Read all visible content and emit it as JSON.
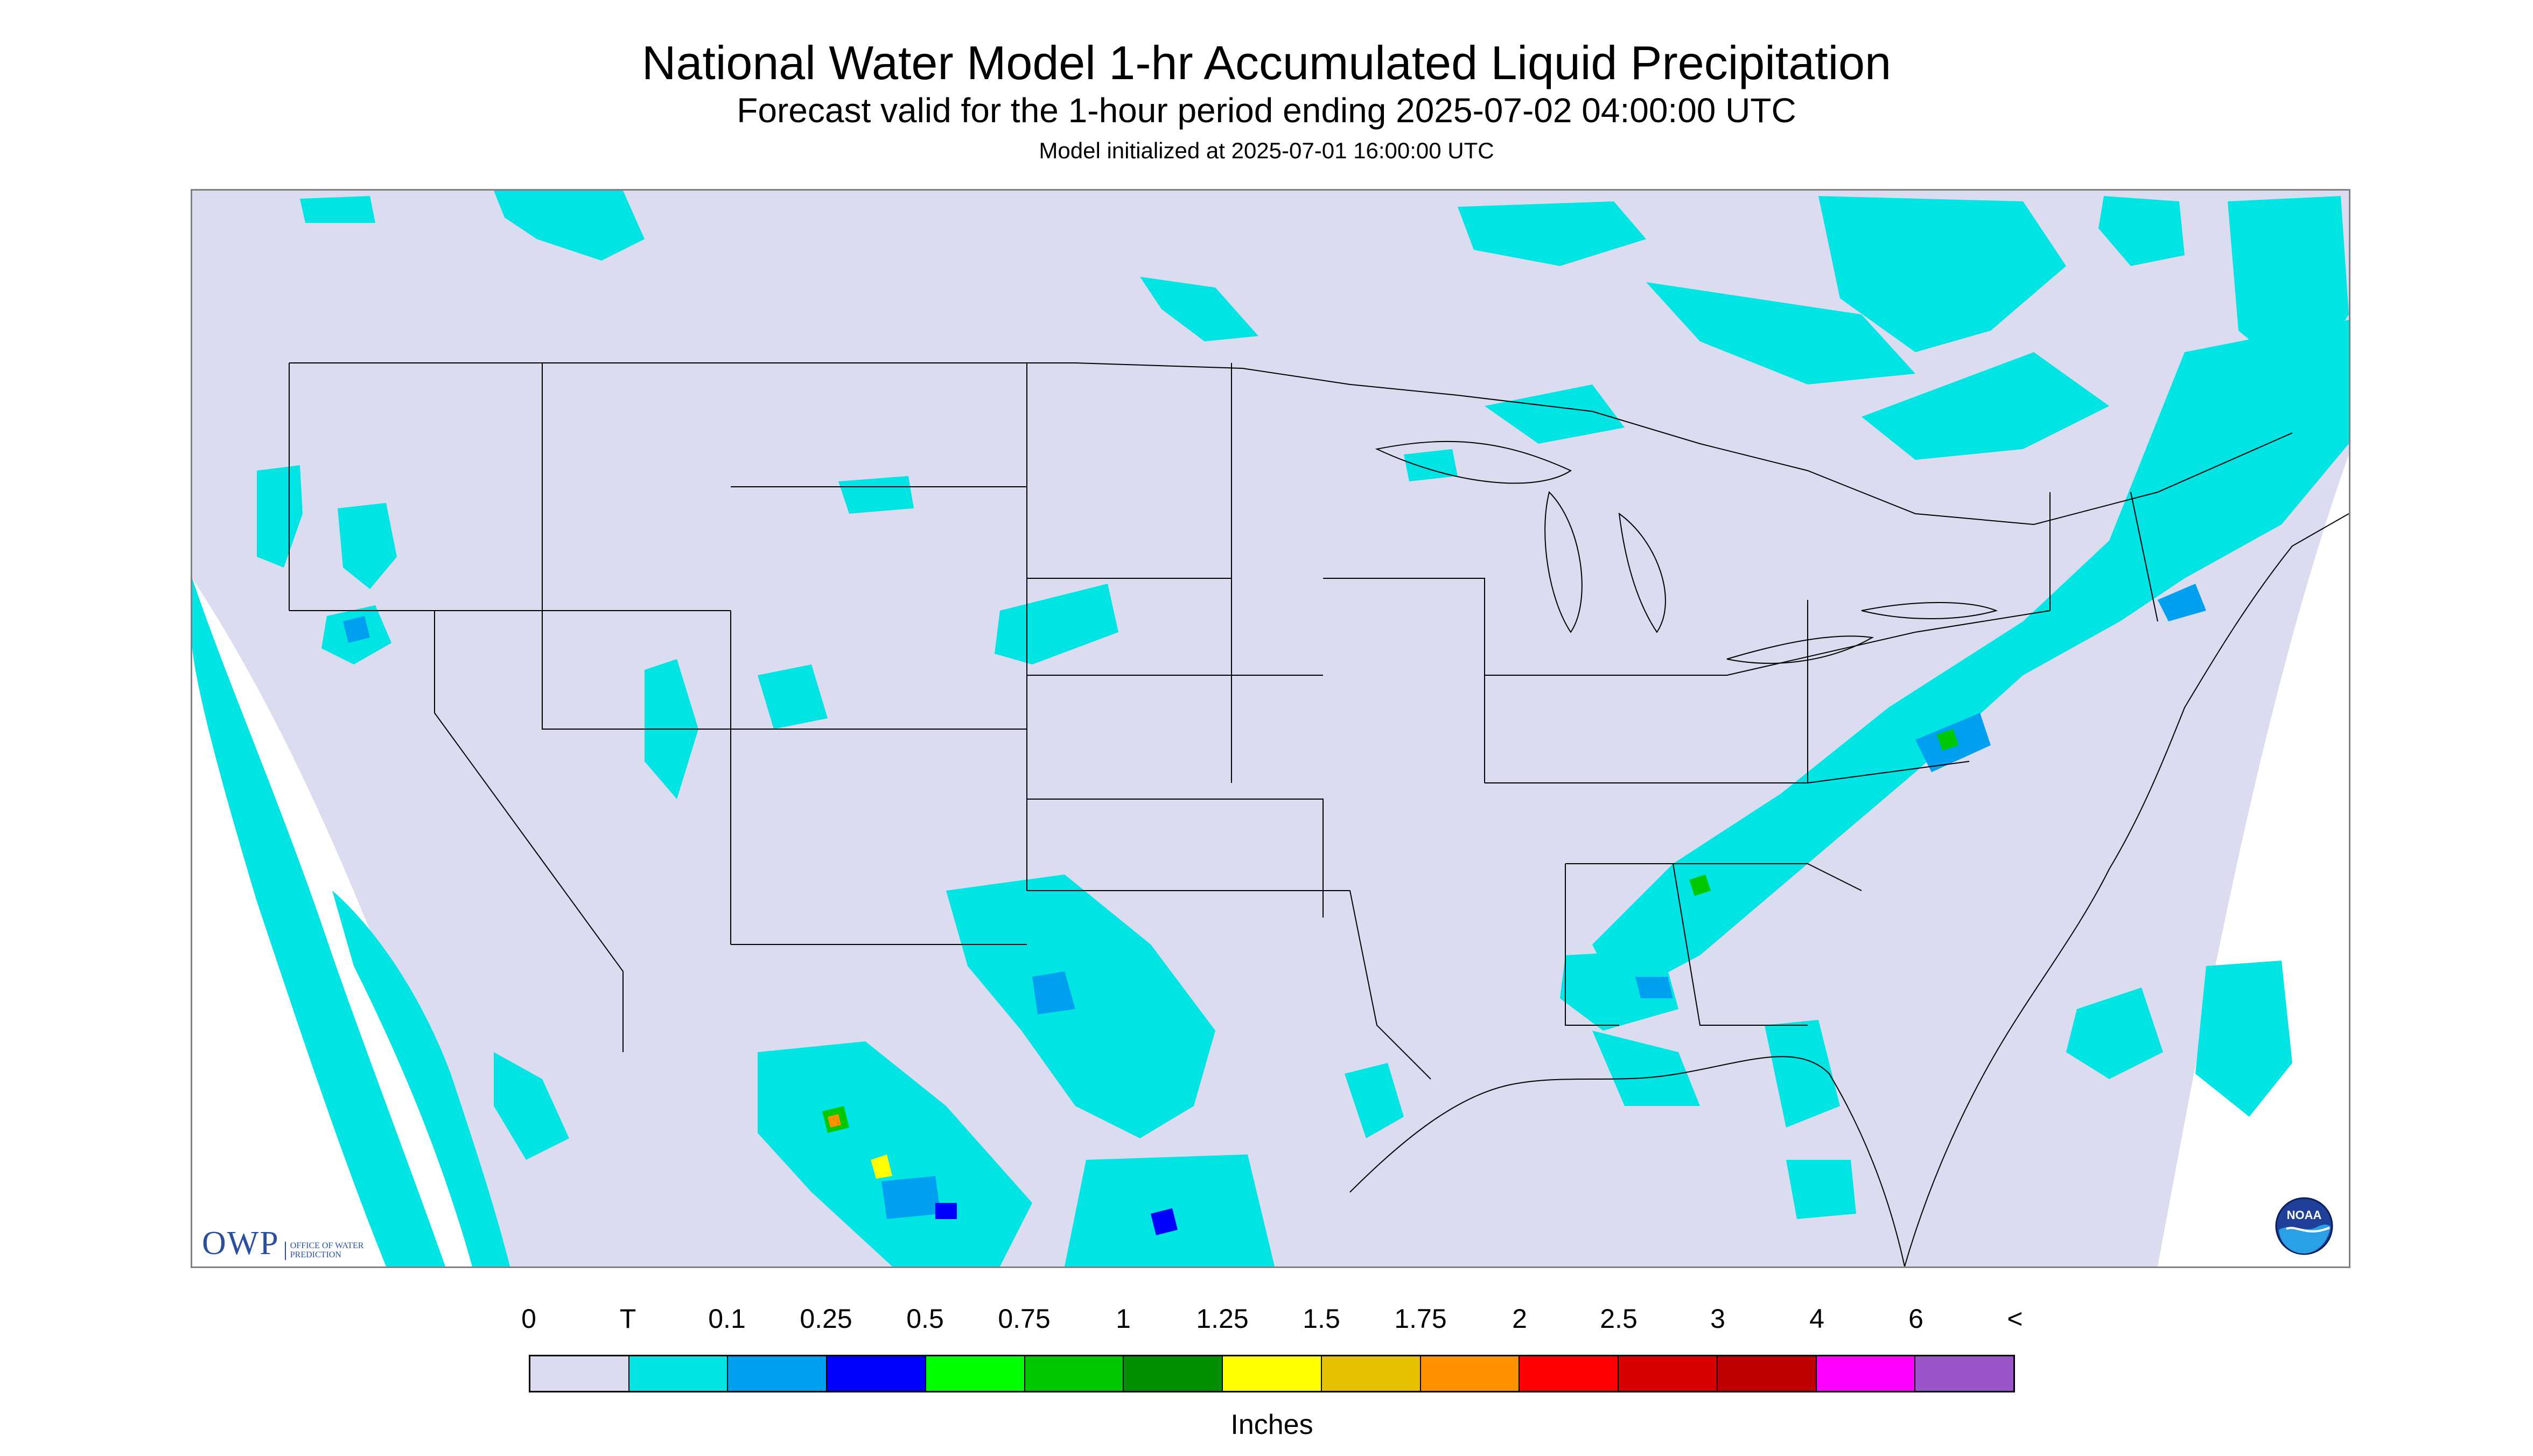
{
  "header": {
    "title": "National Water Model 1-hr Accumulated Liquid Precipitation",
    "subtitle": "Forecast valid for the 1-hour period ending 2025-07-02 04:00:00 UTC",
    "init": "Model initialized at 2025-07-01 16:00:00 UTC"
  },
  "logos": {
    "owp_main": "OWP",
    "owp_sub": "Office of Water Prediction",
    "noaa": "NOAA"
  },
  "legend": {
    "units": "Inches",
    "tick_labels": [
      "0",
      "T",
      "0.1",
      "0.25",
      "0.5",
      "0.75",
      "1",
      "1.25",
      "1.5",
      "1.75",
      "2",
      "2.5",
      "3",
      "4",
      "6",
      "<"
    ],
    "colors": [
      "#dcdcf0",
      "#00e4e4",
      "#00a0f0",
      "#0000ff",
      "#00ff00",
      "#00c800",
      "#009000",
      "#ffff00",
      "#e6c000",
      "#ff9000",
      "#ff0000",
      "#d80000",
      "#c00000",
      "#ff00ff",
      "#9955c9"
    ]
  },
  "map": {
    "background_color": "#dcdcf0",
    "trace_color": "#00e4e4",
    "light_blue": "#00a0f0",
    "dark_blue": "#0000ff",
    "green": "#00c800",
    "yellow": "#ffff00",
    "orange": "#ff9000",
    "red": "#ff0000",
    "boundary_color": "#000000"
  }
}
